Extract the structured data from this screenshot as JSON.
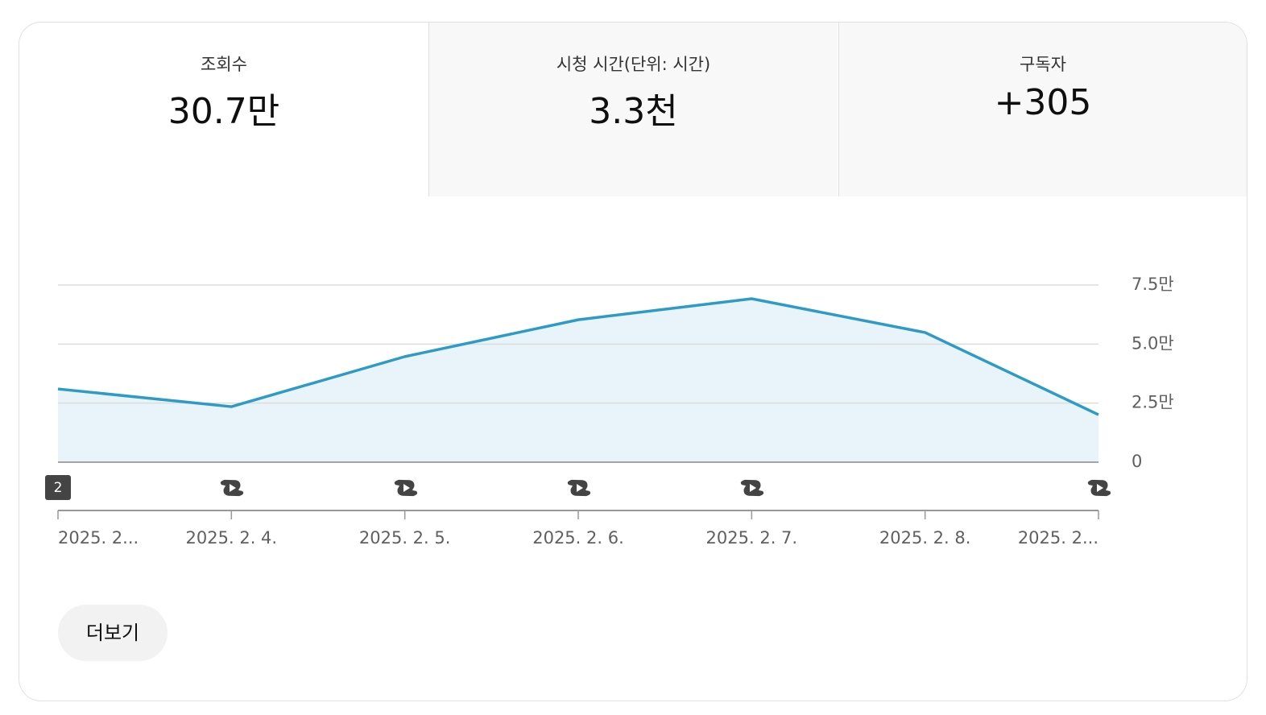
{
  "tabs": [
    {
      "label": "조회수",
      "value": "30.7만"
    },
    {
      "label": "시청 시간(단위: 시간)",
      "value": "3.3천"
    },
    {
      "label": "구독자",
      "value": "+305"
    }
  ],
  "chart_data": {
    "type": "area",
    "categories": [
      "2025. 2...",
      "2025. 2. 4.",
      "2025. 2. 5.",
      "2025. 2. 6.",
      "2025. 2. 7.",
      "2025. 2. 8.",
      "2025. 2..."
    ],
    "values": [
      3.1,
      2.35,
      4.47,
      6.03,
      6.92,
      5.49,
      2.01
    ],
    "color": "#2e9bc6",
    "ylim": [
      0,
      7.5
    ],
    "yticks": [
      0,
      {
        "value": 2.5,
        "label": "2.5만"
      },
      {
        "value": 5,
        "label": "5.0만"
      },
      {
        "value": 7.5,
        "label": "7.5만"
      }
    ],
    "grid": true,
    "event_badge": "2"
  },
  "button": "더보기"
}
